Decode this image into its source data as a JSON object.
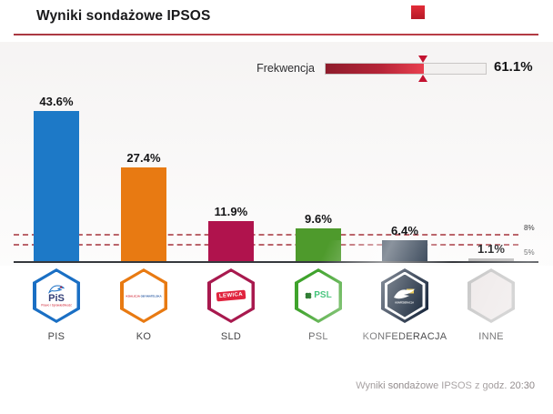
{
  "header": {
    "title": "Wyniki sondażowe IPSOS"
  },
  "turnout": {
    "label": "Frekwencja",
    "percent": 61.1,
    "value_label": "61.1%"
  },
  "chart_data": {
    "type": "bar",
    "title": "Wyniki sondażowe IPSOS",
    "categories": [
      "PIS",
      "KO",
      "SLD",
      "PSL",
      "KONFEDERACJA",
      "INNE"
    ],
    "values": [
      43.6,
      27.4,
      11.9,
      9.6,
      6.4,
      1.1
    ],
    "value_labels": [
      "43.6%",
      "27.4%",
      "11.9%",
      "9.6%",
      "6.4%",
      "1.1%"
    ],
    "bar_colors": [
      "#1d79c7",
      "#e87a12",
      "#b0134d",
      "#4e9a2c",
      "#16273c",
      "#b6b5b5"
    ],
    "thresholds": [
      {
        "label": "8%",
        "value": 8,
        "label_side": "above"
      },
      {
        "label": "5%",
        "value": 5,
        "label_side": "below"
      }
    ],
    "xlabel": "",
    "ylabel": "",
    "ylim": [
      0,
      47
    ],
    "grid": false,
    "legend": false
  },
  "parties": [
    {
      "name": "PIS",
      "hex_border": "#1a6fc4",
      "logo": {
        "type": "pis",
        "main": "PiS",
        "sub": "Prawo i Sprawiedliwość"
      }
    },
    {
      "name": "KO",
      "hex_border": "#e87a12",
      "logo": {
        "type": "ko",
        "line1": "KOALICJA",
        "line2": "OBYWATELSKA",
        "color1": "#d02030",
        "color2": "#1c4f9c"
      }
    },
    {
      "name": "SLD",
      "hex_border": "#a8194e",
      "logo": {
        "type": "sld",
        "text": "LEWICA"
      }
    },
    {
      "name": "PSL",
      "hex_border": "#3fa32c",
      "logo": {
        "type": "psl",
        "text": "PSL"
      }
    },
    {
      "name": "KONFEDERACJA",
      "hex_border": "#15243a",
      "logo": {
        "type": "konfederacja",
        "text": "KONFEDERACJA"
      }
    },
    {
      "name": "INNE",
      "hex_border": "#c4c4c4",
      "logo": {
        "type": "empty"
      }
    }
  ],
  "footer": {
    "note": "Wyniki sondażowe IPSOS z godz. 20:30"
  }
}
